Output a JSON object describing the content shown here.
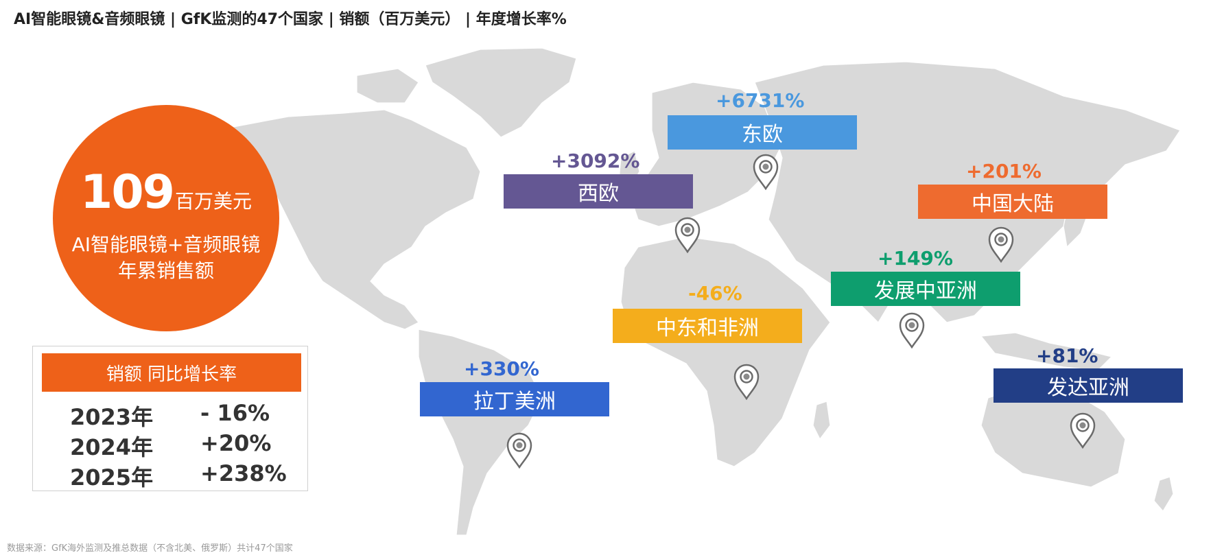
{
  "title": "AI智能眼镜&音频眼镜 | GfK监测的47个国家 | 销额（百万美元） | 年度增长率%",
  "summary": {
    "value": "109",
    "unit": "百万美元",
    "line1": "AI智能眼镜+音频眼镜",
    "line2": "年累销售额",
    "color": "#EE6119"
  },
  "yoy": {
    "header": "销额 同比增长率",
    "rows": [
      {
        "year": "2023年",
        "rate": "- 16%"
      },
      {
        "year": "2024年",
        "rate": "+20%"
      },
      {
        "year": "2025年",
        "rate": "+238%"
      }
    ]
  },
  "regions": [
    {
      "id": "eastern-europe",
      "name": "东欧",
      "growth": "+6731%",
      "growth_value": 6731,
      "color": "#4A98DE"
    },
    {
      "id": "western-europe",
      "name": "西欧",
      "growth": "+3092%",
      "growth_value": 3092,
      "color": "#645793"
    },
    {
      "id": "china-mainland",
      "name": "中国大陆",
      "growth": "+201%",
      "growth_value": 201,
      "color": "#EE6B2F"
    },
    {
      "id": "developing-asia",
      "name": "发展中亚洲",
      "growth": "+149%",
      "growth_value": 149,
      "color": "#0E9E6E"
    },
    {
      "id": "mea",
      "name": "中东和非洲",
      "growth": "-46%",
      "growth_value": -46,
      "color": "#F4AD1C"
    },
    {
      "id": "latin-america",
      "name": "拉丁美洲",
      "growth": "+330%",
      "growth_value": 330,
      "color": "#3266D0"
    },
    {
      "id": "developed-asia",
      "name": "发达亚洲",
      "growth": "+81%",
      "growth_value": 81,
      "color": "#223E86"
    }
  ],
  "chart_data": {
    "type": "table",
    "categories": [
      "东欧",
      "西欧",
      "中国大陆",
      "发展中亚洲",
      "中东和非洲",
      "拉丁美洲",
      "发达亚洲"
    ],
    "values": [
      6731,
      3092,
      201,
      149,
      -46,
      330,
      81
    ],
    "unit": "%"
  },
  "footnote": "数据来源：GfK海外监测及推总数据（不含北美、俄罗斯）共计47个国家"
}
